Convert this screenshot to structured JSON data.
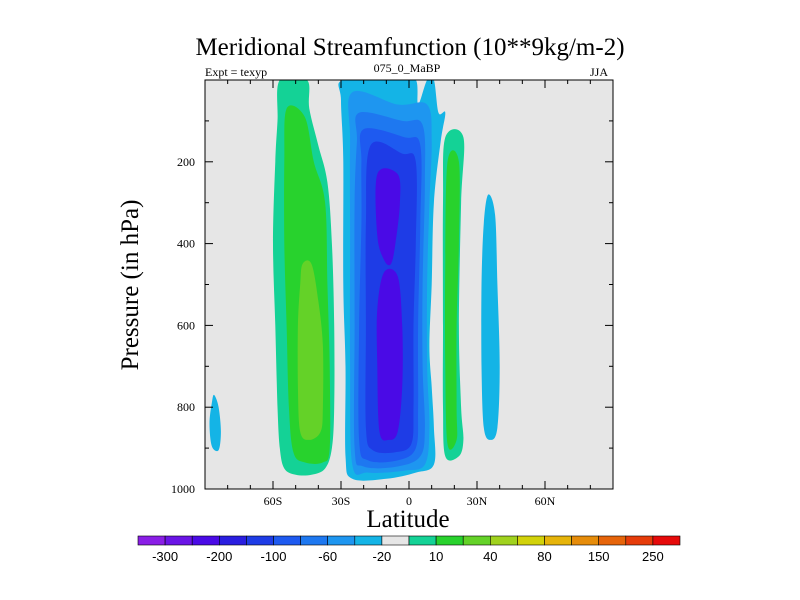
{
  "chart_data": {
    "type": "contour",
    "title": "Meridional Streamfunction (10**9kg/m-2)",
    "left_label": "Expt = texyp",
    "center_label": "075_0_MaBP",
    "right_label": "JJA",
    "xlabel": "Latitude",
    "ylabel": "Pressure (in hPa)",
    "xlim": [
      -90,
      90
    ],
    "ylim": [
      1000,
      0
    ],
    "x_ticks": [
      {
        "value": -60,
        "label": "60S"
      },
      {
        "value": -30,
        "label": "30S"
      },
      {
        "value": 0,
        "label": "0"
      },
      {
        "value": 30,
        "label": "30N"
      },
      {
        "value": 60,
        "label": "60N"
      }
    ],
    "y_ticks": [
      {
        "value": 200,
        "label": "200"
      },
      {
        "value": 400,
        "label": "400"
      },
      {
        "value": 600,
        "label": "600"
      },
      {
        "value": 800,
        "label": "800"
      },
      {
        "value": 1000,
        "label": "1000"
      }
    ],
    "background_color": "#e6e6e6",
    "colorbar": {
      "colors": [
        "#8a1ee6",
        "#6a14e6",
        "#4a0ae6",
        "#2a1ee0",
        "#1e3ce6",
        "#1e5af0",
        "#1e78f0",
        "#1e96f0",
        "#14b4e6",
        "#e6e6e6",
        "#14d296",
        "#28d22d",
        "#64d228",
        "#a0d21e",
        "#d2d20a",
        "#e6b40a",
        "#e68c0a",
        "#e6640a",
        "#e63c0a",
        "#e60a0a"
      ],
      "labels": [
        "-300",
        "-200",
        "-100",
        "-60",
        "-20",
        "10",
        "40",
        "80",
        "150",
        "250"
      ]
    },
    "contours": [
      {
        "color": "#14b4e6",
        "points": [
          [
            -86,
            770
          ],
          [
            -84,
            800
          ],
          [
            -83,
            860
          ],
          [
            -84,
            905
          ],
          [
            -87,
            895
          ],
          [
            -88,
            840
          ],
          [
            -87,
            790
          ]
        ]
      },
      {
        "color": "#14d296",
        "points": [
          [
            -57,
            0
          ],
          [
            -45,
            0
          ],
          [
            -44,
            70
          ],
          [
            -40,
            160
          ],
          [
            -36,
            250
          ],
          [
            -34,
            400
          ],
          [
            -33,
            600
          ],
          [
            -33,
            800
          ],
          [
            -34,
            900
          ],
          [
            -37,
            950
          ],
          [
            -43,
            965
          ],
          [
            -50,
            965
          ],
          [
            -55,
            950
          ],
          [
            -57,
            900
          ],
          [
            -58,
            800
          ],
          [
            -59,
            600
          ],
          [
            -60,
            400
          ],
          [
            -59,
            200
          ],
          [
            -58,
            100
          ]
        ]
      },
      {
        "color": "#28d22d",
        "points": [
          [
            -54,
            70
          ],
          [
            -46,
            90
          ],
          [
            -42,
            200
          ],
          [
            -37,
            300
          ],
          [
            -36,
            500
          ],
          [
            -35,
            700
          ],
          [
            -35,
            900
          ],
          [
            -38,
            935
          ],
          [
            -46,
            935
          ],
          [
            -51,
            910
          ],
          [
            -53,
            800
          ],
          [
            -54,
            600
          ],
          [
            -55,
            400
          ],
          [
            -55,
            200
          ]
        ]
      },
      {
        "color": "#64d228",
        "points": [
          [
            -47,
            450
          ],
          [
            -43,
            450
          ],
          [
            -40,
            540
          ],
          [
            -38,
            650
          ],
          [
            -38,
            800
          ],
          [
            -39,
            860
          ],
          [
            -44,
            880
          ],
          [
            -48,
            860
          ],
          [
            -49,
            750
          ],
          [
            -49,
            600
          ],
          [
            -48,
            500
          ]
        ]
      },
      {
        "color": "#14b4e6",
        "points": [
          [
            -29,
            0
          ],
          [
            -5,
            0
          ],
          [
            3,
            0
          ],
          [
            4,
            60
          ],
          [
            8,
            0
          ],
          [
            11,
            0
          ],
          [
            13,
            80
          ],
          [
            16,
            80
          ],
          [
            14,
            150
          ],
          [
            11,
            300
          ],
          [
            10,
            500
          ],
          [
            9,
            650
          ],
          [
            10,
            750
          ],
          [
            11,
            850
          ],
          [
            11,
            940
          ],
          [
            3,
            960
          ],
          [
            -10,
            975
          ],
          [
            -25,
            975
          ],
          [
            -28,
            920
          ],
          [
            -28,
            700
          ],
          [
            -29,
            500
          ],
          [
            -29,
            200
          ],
          [
            -30,
            50
          ]
        ]
      },
      {
        "color": "#1e96f0",
        "points": [
          [
            -25,
            30
          ],
          [
            -5,
            60
          ],
          [
            8,
            60
          ],
          [
            10,
            150
          ],
          [
            9,
            300
          ],
          [
            8,
            500
          ],
          [
            8,
            700
          ],
          [
            9,
            850
          ],
          [
            7,
            940
          ],
          [
            -2,
            955
          ],
          [
            -18,
            960
          ],
          [
            -25,
            940
          ],
          [
            -26,
            700
          ],
          [
            -26,
            400
          ],
          [
            -26,
            150
          ]
        ]
      },
      {
        "color": "#1e78f0",
        "points": [
          [
            -22,
            80
          ],
          [
            -3,
            100
          ],
          [
            6,
            110
          ],
          [
            7,
            250
          ],
          [
            6,
            500
          ],
          [
            6,
            700
          ],
          [
            7,
            850
          ],
          [
            5,
            920
          ],
          [
            -5,
            945
          ],
          [
            -20,
            945
          ],
          [
            -24,
            900
          ],
          [
            -24,
            600
          ],
          [
            -24,
            300
          ],
          [
            -23,
            150
          ]
        ]
      },
      {
        "color": "#1e5af0",
        "points": [
          [
            -20,
            120
          ],
          [
            -2,
            140
          ],
          [
            5,
            160
          ],
          [
            5,
            350
          ],
          [
            4,
            600
          ],
          [
            4,
            800
          ],
          [
            3,
            900
          ],
          [
            -5,
            930
          ],
          [
            -18,
            930
          ],
          [
            -22,
            880
          ],
          [
            -22,
            600
          ],
          [
            -21,
            350
          ],
          [
            -21,
            200
          ]
        ]
      },
      {
        "color": "#1e3ce6",
        "points": [
          [
            -17,
            160
          ],
          [
            -3,
            180
          ],
          [
            3,
            200
          ],
          [
            3,
            400
          ],
          [
            2,
            600
          ],
          [
            2,
            800
          ],
          [
            1,
            890
          ],
          [
            -6,
            910
          ],
          [
            -16,
            905
          ],
          [
            -19,
            850
          ],
          [
            -19,
            600
          ],
          [
            -19,
            350
          ]
        ]
      },
      {
        "color": "#4a0ae6",
        "points": [
          [
            -14,
            230
          ],
          [
            -5,
            230
          ],
          [
            -4,
            300
          ],
          [
            -6,
            400
          ],
          [
            -8,
            450
          ],
          [
            -11,
            440
          ],
          [
            -14,
            380
          ]
        ]
      },
      {
        "color": "#4a0ae6",
        "points": [
          [
            -11,
            470
          ],
          [
            -5,
            480
          ],
          [
            -3,
            600
          ],
          [
            -3,
            750
          ],
          [
            -5,
            860
          ],
          [
            -9,
            880
          ],
          [
            -13,
            860
          ],
          [
            -14,
            700
          ],
          [
            -14,
            560
          ]
        ]
      },
      {
        "color": "#14d296",
        "points": [
          [
            16,
            140
          ],
          [
            24,
            140
          ],
          [
            23,
            300
          ],
          [
            22,
            600
          ],
          [
            23,
            800
          ],
          [
            24,
            880
          ],
          [
            22,
            920
          ],
          [
            16,
            920
          ],
          [
            15,
            800
          ],
          [
            15,
            600
          ],
          [
            15,
            300
          ]
        ]
      },
      {
        "color": "#28d22d",
        "points": [
          [
            17,
            200
          ],
          [
            22,
            200
          ],
          [
            22,
            400
          ],
          [
            21,
            600
          ],
          [
            21,
            800
          ],
          [
            21,
            880
          ],
          [
            17,
            890
          ],
          [
            16,
            700
          ],
          [
            16,
            450
          ]
        ]
      },
      {
        "color": "#14b4e6",
        "points": [
          [
            35,
            280
          ],
          [
            38,
            330
          ],
          [
            39,
            500
          ],
          [
            40,
            700
          ],
          [
            39,
            850
          ],
          [
            36,
            880
          ],
          [
            33,
            850
          ],
          [
            32,
            700
          ],
          [
            32,
            500
          ],
          [
            33,
            350
          ]
        ]
      }
    ]
  }
}
